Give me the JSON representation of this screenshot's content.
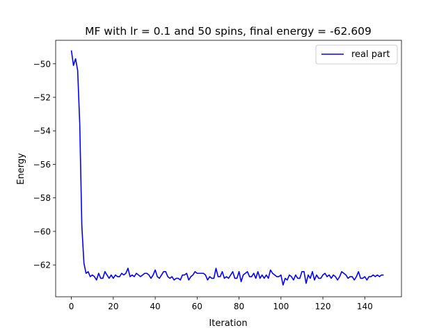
{
  "chart_data": {
    "type": "line",
    "title": "MF with lr = 0.1 and 50 spins, final energy = -62.609",
    "xlabel": "Iteration",
    "ylabel": "Energy",
    "xlim": [
      -7.5,
      157.5
    ],
    "ylim": [
      -63.9,
      -48.6
    ],
    "xticks": [
      0,
      20,
      40,
      60,
      80,
      100,
      120,
      140
    ],
    "yticks": [
      -50,
      -52,
      -54,
      -56,
      -58,
      -60,
      -62
    ],
    "xtick_labels": [
      "0",
      "20",
      "40",
      "60",
      "80",
      "100",
      "120",
      "140"
    ],
    "ytick_labels": [
      "−50",
      "−52",
      "−54",
      "−56",
      "−58",
      "−60",
      "−62"
    ],
    "grid": false,
    "legend_position": "top-right",
    "series": [
      {
        "name": "real part",
        "color": "#0000ff",
        "x": [
          0,
          1,
          2,
          3,
          4,
          5,
          6,
          7,
          8,
          9,
          10,
          11,
          12,
          13,
          14,
          15,
          16,
          17,
          18,
          19,
          20,
          21,
          22,
          23,
          24,
          25,
          26,
          27,
          28,
          29,
          30,
          31,
          32,
          33,
          34,
          35,
          36,
          37,
          38,
          39,
          40,
          41,
          42,
          43,
          44,
          45,
          46,
          47,
          48,
          49,
          50,
          51,
          52,
          53,
          54,
          55,
          56,
          57,
          58,
          59,
          60,
          61,
          62,
          63,
          64,
          65,
          66,
          67,
          68,
          69,
          70,
          71,
          72,
          73,
          74,
          75,
          76,
          77,
          78,
          79,
          80,
          81,
          82,
          83,
          84,
          85,
          86,
          87,
          88,
          89,
          90,
          91,
          92,
          93,
          94,
          95,
          96,
          97,
          98,
          99,
          100,
          101,
          102,
          103,
          104,
          105,
          106,
          107,
          108,
          109,
          110,
          111,
          112,
          113,
          114,
          115,
          116,
          117,
          118,
          119,
          120,
          121,
          122,
          123,
          124,
          125,
          126,
          127,
          128,
          129,
          130,
          131,
          132,
          133,
          134,
          135,
          136,
          137,
          138,
          139,
          140,
          141,
          142,
          143,
          144,
          145,
          146,
          147,
          148,
          149
        ],
        "values": [
          -49.2,
          -50.1,
          -49.7,
          -50.4,
          -53.6,
          -59.7,
          -61.9,
          -62.5,
          -62.4,
          -62.7,
          -62.6,
          -62.7,
          -62.9,
          -62.5,
          -62.8,
          -62.8,
          -62.4,
          -62.6,
          -62.8,
          -62.6,
          -62.8,
          -62.6,
          -62.7,
          -62.7,
          -62.5,
          -62.6,
          -62.5,
          -62.2,
          -62.7,
          -62.6,
          -62.7,
          -62.5,
          -62.6,
          -62.7,
          -62.6,
          -62.5,
          -62.5,
          -62.6,
          -62.8,
          -62.6,
          -62.3,
          -62.7,
          -62.8,
          -62.6,
          -62.4,
          -62.4,
          -62.7,
          -62.8,
          -62.7,
          -62.9,
          -62.8,
          -62.8,
          -62.9,
          -62.6,
          -62.6,
          -62.5,
          -62.9,
          -62.7,
          -62.6,
          -62.4,
          -62.5,
          -62.5,
          -62.5,
          -62.5,
          -62.6,
          -62.9,
          -62.7,
          -62.8,
          -62.8,
          -62.2,
          -62.7,
          -62.7,
          -62.4,
          -62.8,
          -62.7,
          -62.8,
          -62.6,
          -62.4,
          -62.8,
          -62.8,
          -62.4,
          -63.0,
          -62.6,
          -62.5,
          -62.4,
          -62.7,
          -62.7,
          -62.5,
          -62.8,
          -62.4,
          -62.8,
          -62.6,
          -62.8,
          -62.6,
          -62.8,
          -62.3,
          -62.5,
          -62.6,
          -62.7,
          -62.7,
          -62.6,
          -63.2,
          -62.8,
          -62.9,
          -62.6,
          -62.7,
          -62.9,
          -62.6,
          -62.8,
          -62.8,
          -62.4,
          -62.4,
          -63.1,
          -62.6,
          -62.8,
          -62.4,
          -62.9,
          -62.6,
          -62.8,
          -62.8,
          -62.6,
          -62.5,
          -62.7,
          -62.6,
          -62.8,
          -62.6,
          -62.7,
          -62.9,
          -62.7,
          -62.4,
          -62.5,
          -62.6,
          -62.8,
          -62.7,
          -62.7,
          -62.9,
          -62.7,
          -62.4,
          -62.8,
          -62.8,
          -62.7,
          -62.9,
          -62.7,
          -62.7,
          -62.6,
          -62.7,
          -62.6,
          -62.7,
          -62.6,
          -62.6
        ]
      }
    ]
  }
}
